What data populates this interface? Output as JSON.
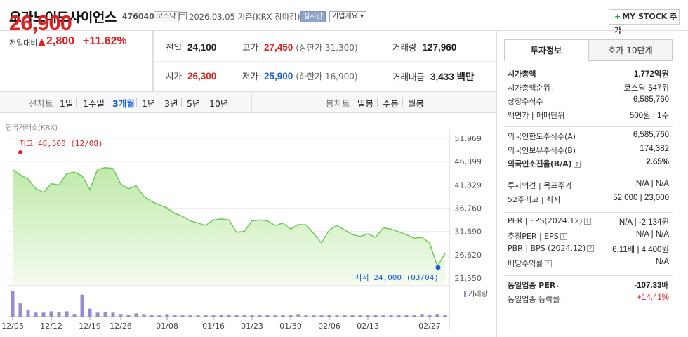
{
  "header": {
    "title": "오가노이드사이언스",
    "code": "476040",
    "market": "코스닥",
    "datetext": "2026.03.05  기준(KRX 장마감)",
    "realtime": "실시간",
    "corp_overview": "기업개요 ▾",
    "mystock": "MY STOCK 추가"
  },
  "price": {
    "current": "26,900",
    "change_label": "전일대비",
    "change_arrow": "▲",
    "change": "2,800",
    "change_pct": "+11.62%"
  },
  "stats": {
    "prev_label": "전일",
    "prev": "24,100",
    "open_label": "시가",
    "open": "26,300",
    "high_label": "고가",
    "high": "27,450",
    "upper_limit": "(상한가 31,300)",
    "low_label": "저가",
    "low": "25,900",
    "lower_limit": "(하한가 16,900)",
    "volume_label": "거래량",
    "volume": "127,960",
    "amount_label": "거래대금",
    "amount": "3,433 백만"
  },
  "tabs": {
    "line_label": "선차트",
    "line_items": [
      "1일",
      "1주일",
      "3개월",
      "1년",
      "3년",
      "5년",
      "10년"
    ],
    "active": "3개월",
    "candle_label": "봉차트",
    "candle_items": [
      "일봉",
      "주봉",
      "월봉"
    ]
  },
  "chart_source": "한국거래소(KRX)",
  "chart_data": {
    "type": "area",
    "y_ticks": [
      51969,
      46899,
      41829,
      36760,
      31690,
      26620,
      21550
    ],
    "y_tick_labels": [
      "51,969",
      "46,899",
      "41,829",
      "36,760",
      "31,690",
      "26,620",
      "21,550"
    ],
    "ylim": [
      21550,
      51969
    ],
    "x_tick_labels": [
      "12/05",
      "12/12",
      "12/19",
      "12/26",
      "01/08",
      "01/16",
      "01/23",
      "01/30",
      "02/06",
      "02/13",
      "02/27"
    ],
    "x_tick_index": [
      0,
      5,
      10,
      14,
      20,
      26,
      31,
      36,
      41,
      46,
      54
    ],
    "prices": [
      45200,
      44000,
      43100,
      41000,
      40200,
      42100,
      41800,
      44300,
      44600,
      43800,
      40800,
      45200,
      45600,
      45400,
      42000,
      41000,
      41600,
      39300,
      38200,
      37500,
      36800,
      35600,
      35000,
      34000,
      33500,
      33000,
      34200,
      34400,
      34200,
      31500,
      31700,
      34000,
      34200,
      34000,
      33000,
      33500,
      32200,
      33200,
      33100,
      31200,
      29200,
      32000,
      33000,
      32000,
      31000,
      30600,
      31200,
      30400,
      32500,
      32200,
      31600,
      31000,
      30200,
      30400,
      29200,
      24100,
      26900
    ],
    "volume": [
      38,
      20,
      10,
      6,
      6,
      8,
      7,
      8,
      4,
      33,
      12,
      6,
      7,
      6,
      4,
      3,
      5,
      4,
      3,
      2,
      4,
      3,
      2,
      2,
      3,
      3,
      2,
      3,
      3,
      2,
      3,
      3,
      3,
      3,
      2,
      3,
      3,
      4,
      3,
      2,
      2,
      3,
      3,
      2,
      3,
      2,
      2,
      3,
      2,
      3,
      3,
      3,
      3,
      4,
      3,
      4,
      3
    ],
    "high_label": "최고 48,500 (12/08)",
    "low_label": "최저 24,000 (03/04)",
    "volume_label": "거래량",
    "colors": {
      "line": "#6ec85a",
      "fill_top": "#bfeaa9",
      "fill_bottom": "#f4fbef",
      "volume": "#9b8ad0",
      "high": "#e02020",
      "low": "#1a5bd8"
    }
  },
  "right_panel": {
    "tab_info": "투자정보",
    "tab_quote": "호가 10단계",
    "rows1": [
      {
        "k": "시가총액",
        "v": "1,772억원",
        "bold": true
      },
      {
        "k": "시가총액순위",
        "v": "코스닥 547위",
        "caret": true
      },
      {
        "k": "상장주식수",
        "v": "6,585,760"
      },
      {
        "k": "액면가 | 매매단위",
        "v": "500원 | 1주"
      }
    ],
    "rows2": [
      {
        "k": "외국인한도주식수(A)",
        "v": "6,585,760"
      },
      {
        "k": "외국인보유주식수(B)",
        "v": "174,382"
      },
      {
        "k": "외국인소진율(B/A)",
        "v": "2.65%",
        "bold": true,
        "q": true
      }
    ],
    "rows3": [
      {
        "k": "투자의견 | 목표주가",
        "v": "N/A | N/A"
      },
      {
        "k": "52주최고 | 최저",
        "v": "52,000 | 23,000"
      }
    ],
    "rows4": [
      {
        "k": "PER | EPS(2024.12)",
        "v": "N/A | -2,134원",
        "q": true
      },
      {
        "k": "추정PER | EPS",
        "v": "N/A | N/A",
        "q": true
      },
      {
        "k": "PBR | BPS (2024.12)",
        "v": "6.11배 | 4,400원",
        "q": true
      },
      {
        "k": "배당수익률",
        "v": "N/A",
        "q": true
      }
    ],
    "rows5": [
      {
        "k": "동일업종 PER",
        "v": "-107.33배",
        "bold": true,
        "caret": true
      },
      {
        "k": "동일업종 등락률",
        "v": "+14.41%",
        "red": true,
        "caret": true
      }
    ]
  }
}
